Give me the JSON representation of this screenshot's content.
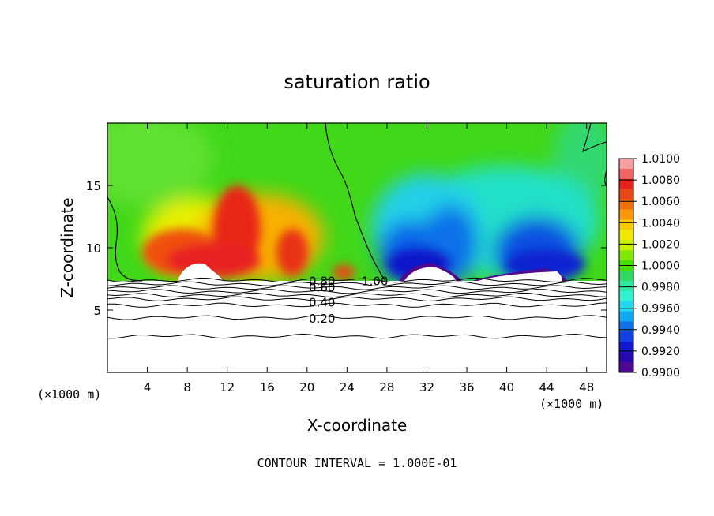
{
  "chart_data": {
    "type": "heatmap",
    "title": "saturation ratio",
    "xlabel": "X-coordinate",
    "ylabel": "Z-coordinate",
    "x_unit": "(×1000 m)",
    "x_unit_right": "(×1000 m)",
    "xlim": [
      0,
      50
    ],
    "ylim": [
      0,
      20
    ],
    "x_ticks": [
      4,
      8,
      12,
      16,
      20,
      24,
      28,
      32,
      36,
      40,
      44,
      48
    ],
    "y_ticks": [
      5,
      10,
      15
    ],
    "footnote": "CONTOUR INTERVAL = 1.000E-01",
    "colorbar": {
      "labels": [
        "1.0100",
        "1.0080",
        "1.0060",
        "1.0040",
        "1.0020",
        "1.0000",
        "0.9980",
        "0.9960",
        "0.9940",
        "0.9920",
        "0.9900"
      ],
      "colors": [
        "#f5a0a0",
        "#f06464",
        "#e82020",
        "#e84818",
        "#f07010",
        "#f89808",
        "#f8c800",
        "#f0e800",
        "#c8f000",
        "#80e800",
        "#40e000",
        "#30d860",
        "#30e8a0",
        "#30f0d0",
        "#20d8f0",
        "#10a8f0",
        "#1070e8",
        "#1040e0",
        "#1018d0",
        "#2808b0",
        "#500890"
      ]
    },
    "contour_labels": [
      {
        "x": 21.5,
        "z": 7.3,
        "text": "0.80"
      },
      {
        "x": 21.5,
        "z": 6.8,
        "text": "0.60"
      },
      {
        "x": 21.5,
        "z": 5.6,
        "text": "0.40"
      },
      {
        "x": 21.5,
        "z": 4.3,
        "text": "0.20"
      },
      {
        "x": 26.8,
        "z": 7.3,
        "text": "1.00"
      }
    ],
    "contours_z": [
      7.4,
      7.1,
      6.8,
      6.5,
      6.2,
      5.9,
      5.4,
      4.4,
      2.9
    ]
  }
}
